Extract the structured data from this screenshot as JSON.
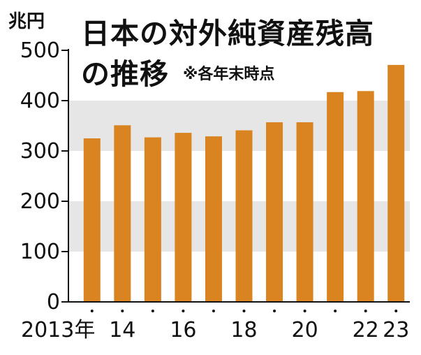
{
  "chart_data": {
    "type": "bar",
    "title": "日本の対外純資産残高",
    "title_line2": "の推移",
    "subtitle": "※各年末時点",
    "ylabel": "兆円",
    "xlabel": "",
    "ylim": [
      0,
      500
    ],
    "yticks": [
      0,
      100,
      200,
      300,
      400,
      500
    ],
    "categories": [
      "2013",
      "2014",
      "2015",
      "2016",
      "2017",
      "2018",
      "2019",
      "2020",
      "2021",
      "2022",
      "2023"
    ],
    "x_tick_labels": [
      "2013年",
      "14",
      "",
      "16",
      "",
      "18",
      "",
      "20",
      "",
      "22",
      "23"
    ],
    "values": [
      325,
      351,
      327,
      336,
      329,
      341,
      357,
      357,
      417,
      419,
      471
    ],
    "grid": "alternating horizontal bands",
    "legend": "none",
    "colors": {
      "bar": "#D98420",
      "band": "#E6E6E6",
      "axis": "#111111",
      "background": "#FFFFFF"
    }
  }
}
